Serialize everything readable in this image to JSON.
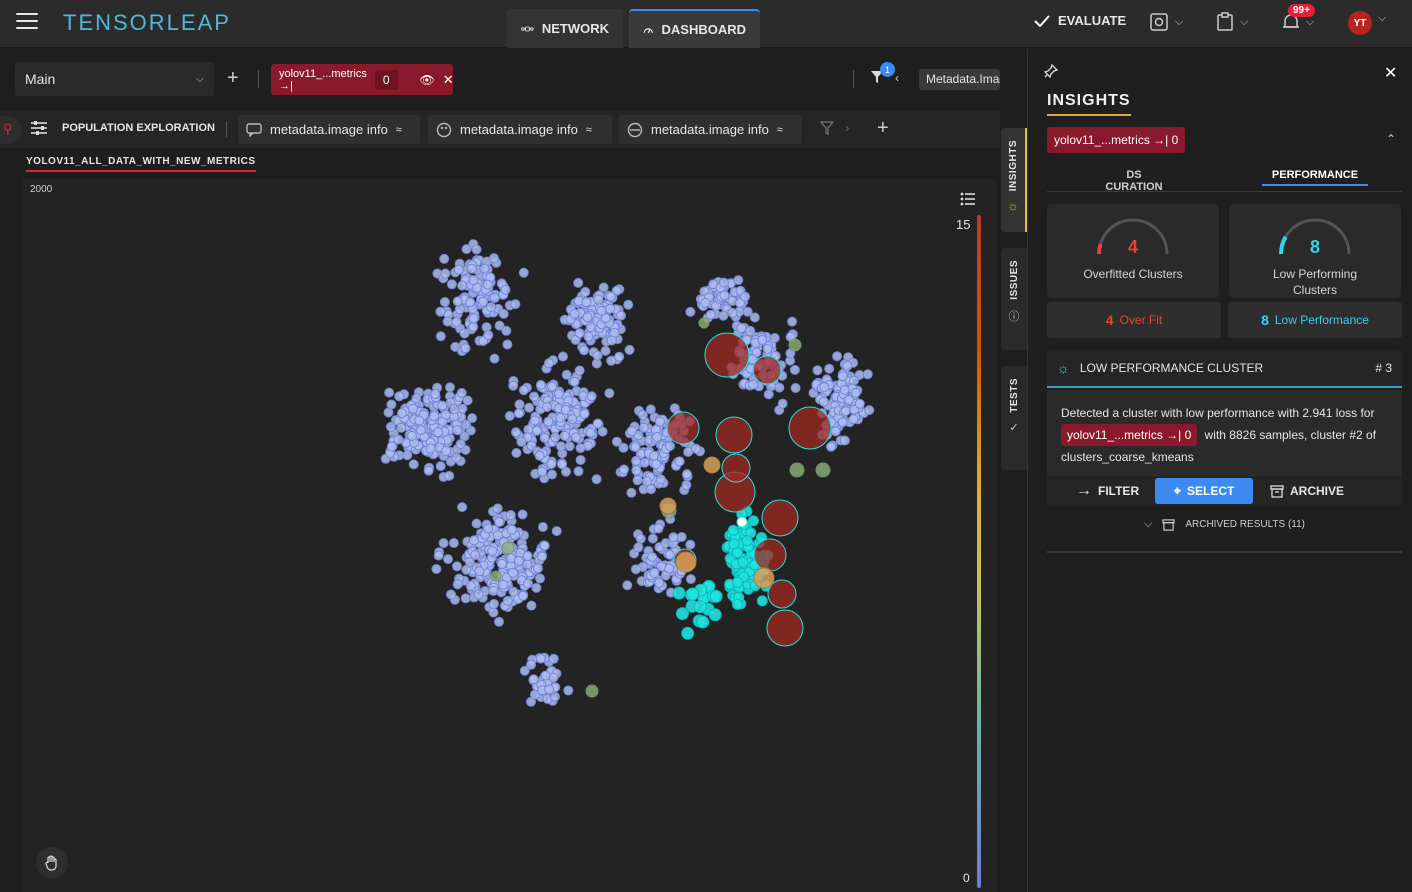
{
  "app": {
    "brand": "TENSORLEAP"
  },
  "nav": {
    "network_label": "NETWORK",
    "dashboard_label": "DASHBOARD",
    "evaluate_label": "EVALUATE",
    "notification_count": "99+",
    "avatar_initials": "YT"
  },
  "toolbar": {
    "branch": "Main",
    "model_chip_label": "yolov11_...metrics →|",
    "model_chip_value": "0",
    "filter_count": "1",
    "metadata_chip": "Metadata.Imag"
  },
  "panel": {
    "title": "POPULATION EXPLORATION",
    "tabs": [
      {
        "label": "metadata.image info"
      },
      {
        "label": "metadata.image info"
      },
      {
        "label": "metadata.image info"
      }
    ],
    "dataset_label": "YOLOV11_ALL_DATA_WITH_NEW_METRICS",
    "y_top_label": "2000",
    "scale_max": "15",
    "scale_min": "0"
  },
  "side_tabs": {
    "insights": "INSIGHTS",
    "issues": "ISSUES",
    "tests": "TESTS"
  },
  "insights": {
    "title": "INSIGHTS",
    "model_chip": "yolov11_...metrics →| 0",
    "tabs": [
      {
        "label": "DS CURATION"
      },
      {
        "label": "PERFORMANCE"
      }
    ],
    "overfitted": {
      "value": "4",
      "label": "Overfitted Clusters",
      "color": "#e0443b"
    },
    "low_perf": {
      "value": "8",
      "label": "Low Performing Clusters",
      "color": "#36d3e8"
    },
    "overfit_button": {
      "count": "4",
      "label": "Over Fit"
    },
    "lowperf_button": {
      "count": "8",
      "label": "Low Performance"
    },
    "cluster": {
      "title": "LOW PERFORMANCE CLUSTER",
      "number": "# 3",
      "text_a": "Detected a cluster with low performance with 2.941 loss for",
      "chip": "yolov11_...metrics →| 0",
      "text_b": "with 8826 samples, cluster #2 of clusters_coarse_kmeans"
    },
    "actions": {
      "filter": "FILTER",
      "select": "SELECT",
      "archive": "ARCHIVE"
    },
    "archived_label": "ARCHIVED RESULTS (11)"
  }
}
